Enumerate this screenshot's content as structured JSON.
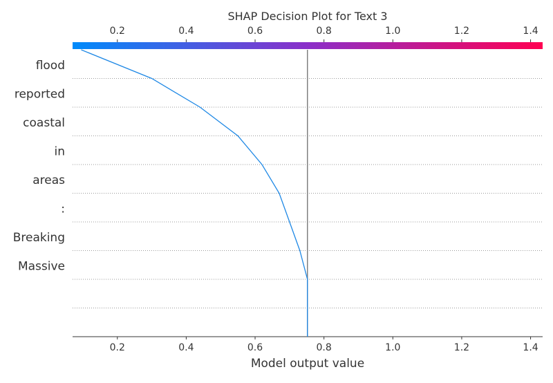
{
  "chart_data": {
    "type": "line",
    "title": "SHAP Decision Plot for Text 3",
    "xlabel": "Model output value",
    "ylabel": "",
    "xlim": [
      0.07,
      1.435
    ],
    "xticks": [
      0.2,
      0.4,
      0.6,
      0.8,
      1.0,
      1.2,
      1.4
    ],
    "xtick_labels": [
      "0.2",
      "0.4",
      "0.6",
      "0.8",
      "1.0",
      "1.2",
      "1.4"
    ],
    "features": [
      "flood",
      "reported",
      "coastal",
      "in",
      "areas",
      ":",
      "Breaking",
      "Massive",
      "",
      ""
    ],
    "series": [
      {
        "values": [
          0.095,
          0.3,
          0.44,
          0.55,
          0.62,
          0.67,
          0.7,
          0.73,
          0.752,
          0.752,
          0.752
        ]
      }
    ],
    "base_value": 0.752,
    "grid": true,
    "colors": {
      "line": "#1e88e5",
      "base_line": "#808080",
      "grid": "#999999",
      "colorbar_start": "#008bfb",
      "colorbar_mid": "#8b2fc9",
      "colorbar_end": "#ff0052",
      "axis": "#333333"
    }
  }
}
